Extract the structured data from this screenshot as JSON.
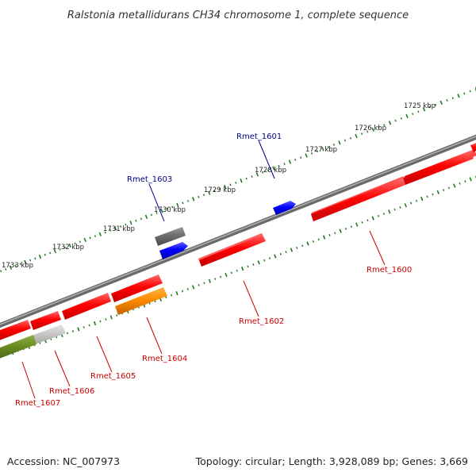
{
  "title": "Ralstonia metallidurans CH34 chromosome 1, complete sequence",
  "footer": {
    "accession": "Accession: NC_007973",
    "topology": "Topology: circular; Length: 3,928,089 bp; Genes: 3,669"
  },
  "scale": {
    "labels": [
      "1725 kbp",
      "1726 kbp",
      "1727 kbp",
      "1728 kbp",
      "1729 kbp",
      "1730 kbp",
      "1731 kbp",
      "1732 kbp",
      "1733 kbp"
    ]
  },
  "genes": [
    {
      "name": "Rmet_1600",
      "strand": "minus",
      "color": "#ff0000"
    },
    {
      "name": "Rmet_1601",
      "strand": "plus",
      "color": "#0000ff"
    },
    {
      "name": "Rmet_1602",
      "strand": "minus",
      "color": "#ff0000"
    },
    {
      "name": "Rmet_1603",
      "strand": "plus",
      "color": "#0000ff"
    },
    {
      "name": "Rmet_1604",
      "strand": "minus",
      "color": "#ff8c00"
    },
    {
      "name": "Rmet_1605",
      "strand": "minus",
      "color": "#ff0000"
    },
    {
      "name": "Rmet_1606",
      "strand": "minus",
      "color": "#c0c0c0"
    },
    {
      "name": "Rmet_1607",
      "strand": "minus",
      "color": "#6b8e23"
    }
  ],
  "colors": {
    "backbone": "#808080",
    "ticks": "#1e7a1e",
    "plus_label": "#00008b",
    "minus_label": "#cc0000"
  }
}
